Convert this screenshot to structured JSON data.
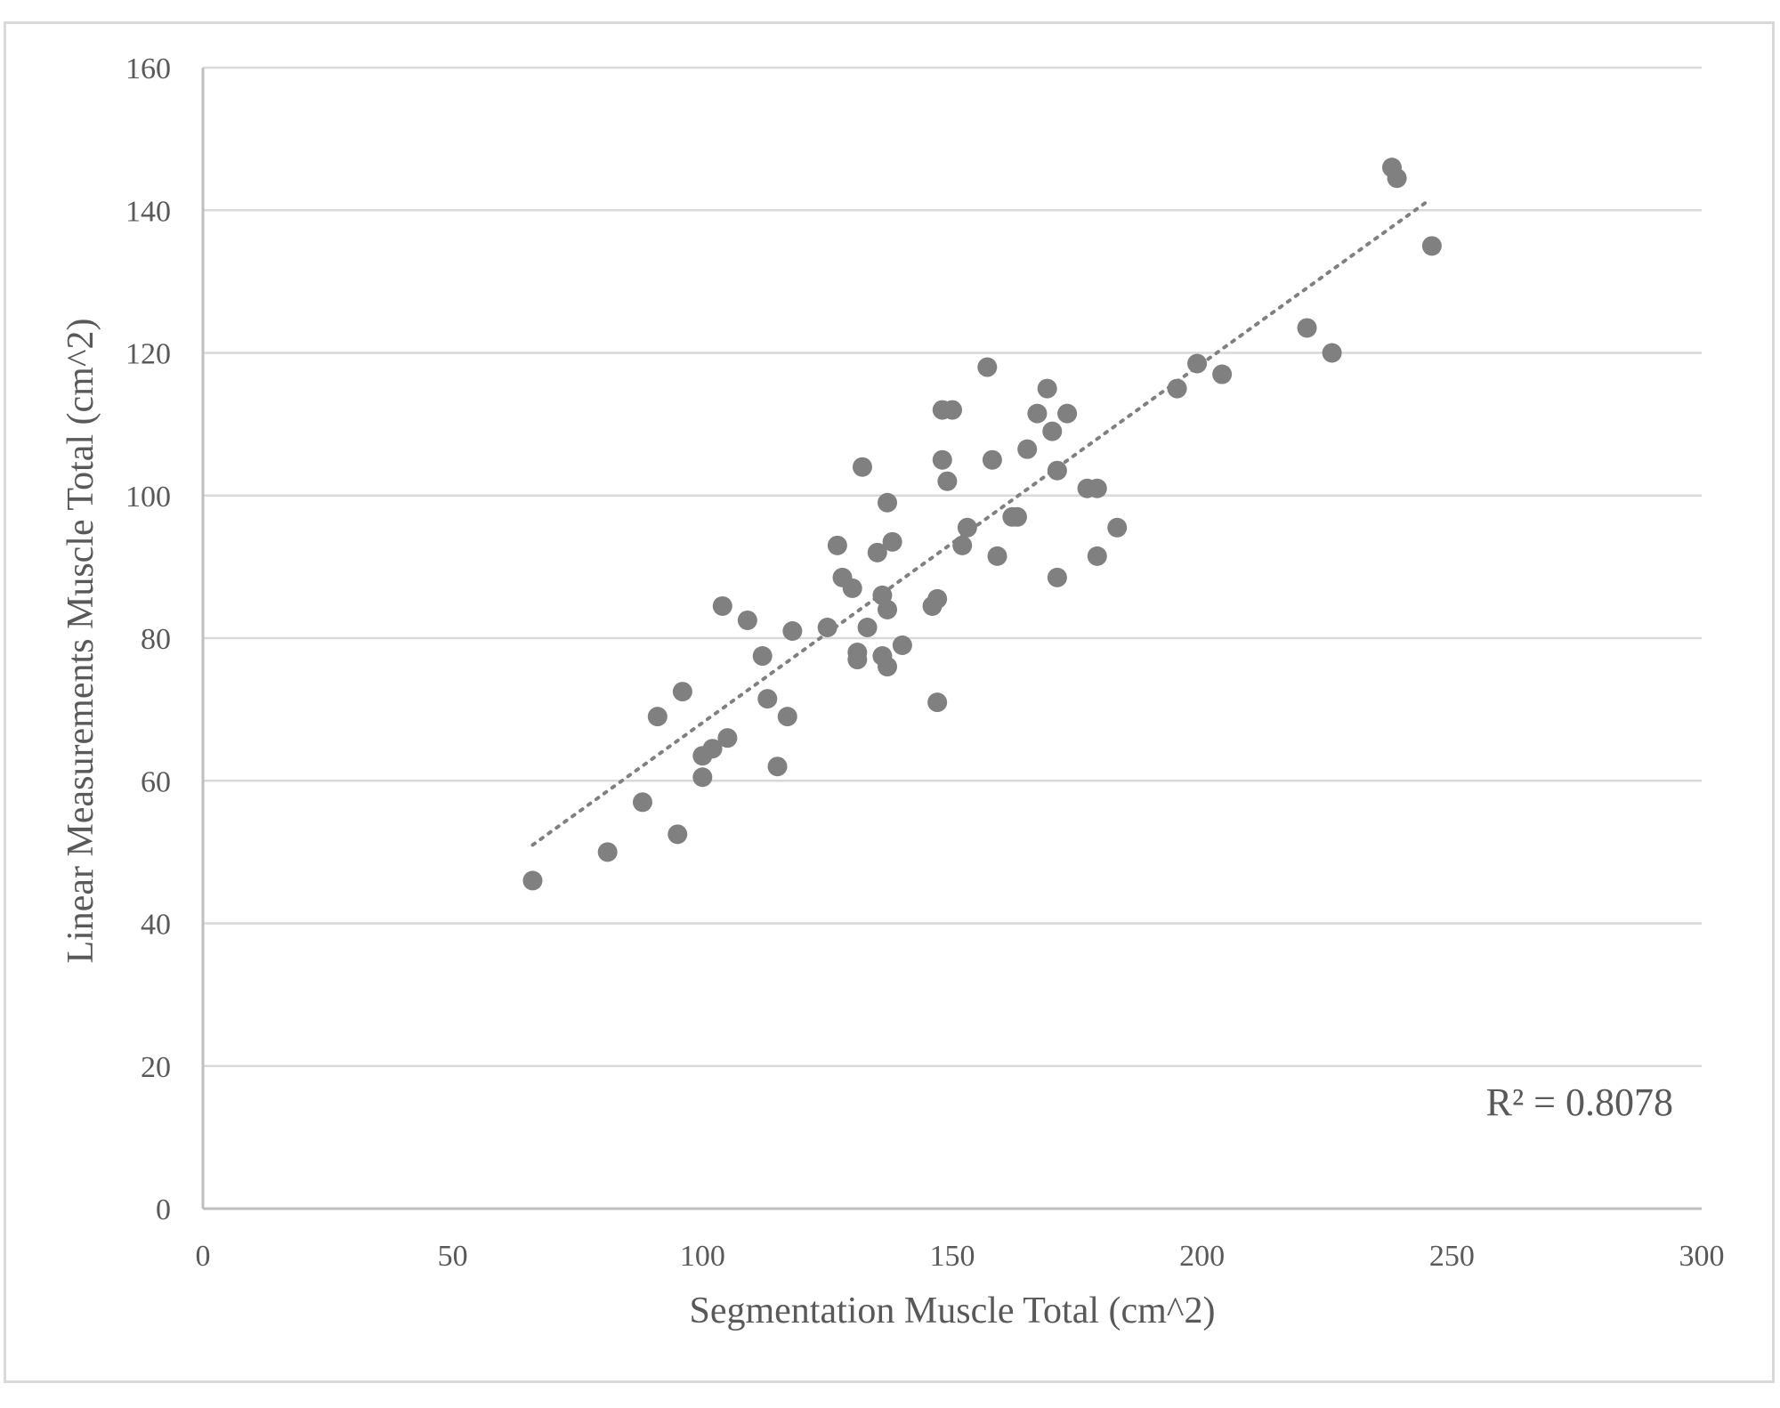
{
  "chart_data": {
    "type": "scatter",
    "xlabel": "Segmentation Muscle Total (cm^2)",
    "ylabel": "Linear Measurements Muscle Total (cm^2)",
    "xlim": [
      0,
      300
    ],
    "ylim": [
      0,
      160
    ],
    "xticks": [
      0,
      50,
      100,
      150,
      200,
      250,
      300
    ],
    "yticks": [
      0,
      20,
      40,
      60,
      80,
      100,
      120,
      140,
      160
    ],
    "grid": "horizontal",
    "legend": "none",
    "marker_color": "#808080",
    "gridline_color": "#d9d9d9",
    "trendline": {
      "type": "linear",
      "style": "dotted",
      "x_range": [
        66,
        245
      ],
      "y_range": [
        51,
        141.2
      ],
      "annotation": "R² = 0.8078"
    },
    "series": [
      {
        "points": [
          [
            66,
            46
          ],
          [
            81,
            50
          ],
          [
            88,
            57
          ],
          [
            95,
            52.5
          ],
          [
            96,
            72.5
          ],
          [
            91,
            69
          ],
          [
            100,
            60.5
          ],
          [
            100,
            63.5
          ],
          [
            102,
            64.5
          ],
          [
            105,
            66
          ],
          [
            104,
            84.5
          ],
          [
            109,
            82.5
          ],
          [
            112,
            77.5
          ],
          [
            113,
            71.5
          ],
          [
            115,
            62
          ],
          [
            117,
            69
          ],
          [
            118,
            81
          ],
          [
            125,
            81.5
          ],
          [
            127,
            93
          ],
          [
            128,
            88.5
          ],
          [
            130,
            87
          ],
          [
            131,
            78
          ],
          [
            131,
            77
          ],
          [
            132,
            104
          ],
          [
            133,
            81.5
          ],
          [
            135,
            92
          ],
          [
            136,
            86
          ],
          [
            136,
            77.5
          ],
          [
            137,
            99
          ],
          [
            137,
            84
          ],
          [
            137,
            76
          ],
          [
            138,
            93.5
          ],
          [
            140,
            79
          ],
          [
            146,
            84.5
          ],
          [
            147,
            85.5
          ],
          [
            147,
            71
          ],
          [
            148,
            112
          ],
          [
            148,
            105
          ],
          [
            149,
            102
          ],
          [
            150,
            112
          ],
          [
            152,
            93
          ],
          [
            153,
            95.5
          ],
          [
            157,
            118
          ],
          [
            158,
            105
          ],
          [
            159,
            91.5
          ],
          [
            162,
            97
          ],
          [
            163,
            97
          ],
          [
            165,
            106.5
          ],
          [
            167,
            111.5
          ],
          [
            169,
            115
          ],
          [
            170,
            109
          ],
          [
            171,
            103.5
          ],
          [
            171,
            88.5
          ],
          [
            173,
            111.5
          ],
          [
            177,
            101
          ],
          [
            179,
            101
          ],
          [
            179,
            91.5
          ],
          [
            183,
            95.5
          ],
          [
            195,
            115
          ],
          [
            199,
            118.5
          ],
          [
            204,
            117
          ],
          [
            221,
            123.5
          ],
          [
            226,
            120
          ],
          [
            238,
            146
          ],
          [
            239,
            144.5
          ],
          [
            246,
            135
          ]
        ]
      }
    ]
  }
}
